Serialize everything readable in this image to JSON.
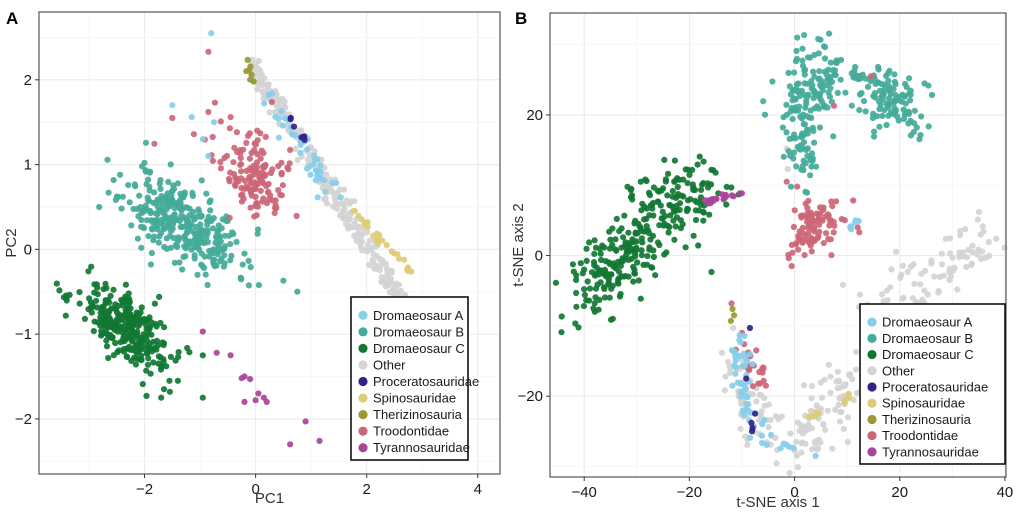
{
  "chart_data": [
    {
      "panel": "A",
      "type": "scatter",
      "title": "",
      "xlabel": "PC1",
      "ylabel": "PC2",
      "xlim": [
        -3.9,
        4.4
      ],
      "ylim": [
        -2.65,
        2.8
      ],
      "xticks": [
        -2,
        0,
        2,
        4
      ],
      "xtick_labels": [
        "−2",
        "0",
        "2",
        "4"
      ],
      "yticks": [
        -2,
        -1,
        0,
        1,
        2
      ],
      "ytick_labels": [
        "−2",
        "−1",
        "0",
        "1",
        "2"
      ],
      "grid": true,
      "legend_position": "bottom-right",
      "clusters": [
        {
          "group": "Dromaeosaur B",
          "n": 330,
          "cx": -1.3,
          "cy": 0.3,
          "sx": 0.55,
          "sy": 0.22,
          "rot": -0.38,
          "seed": 11
        },
        {
          "group": "Dromaeosaur C",
          "n": 300,
          "cx": -2.3,
          "cy": -0.95,
          "sx": 0.45,
          "sy": 0.18,
          "rot": -0.45,
          "seed": 21
        },
        {
          "group": "Troodontidae",
          "n": 110,
          "cx": 0.0,
          "cy": 0.8,
          "sx": 0.3,
          "sy": 0.22,
          "rot": -0.3,
          "seed": 31
        },
        {
          "group": "Troodontidae",
          "n": 30,
          "cx": -0.3,
          "cy": 1.25,
          "sx": 0.55,
          "sy": 0.25,
          "rot": 0.0,
          "seed": 32
        }
      ],
      "bands": [
        {
          "group": "Other",
          "n": 330,
          "x0": -0.1,
          "y0": 2.2,
          "x1": 3.0,
          "y1": -1.0,
          "jitter": 0.07,
          "seed": 41
        },
        {
          "group": "Dromaeosaur A",
          "n": 45,
          "x0": 0.0,
          "y0": 1.95,
          "x1": 1.4,
          "y1": 0.65,
          "jitter": 0.07,
          "seed": 51
        },
        {
          "group": "Spinosauridae",
          "n": 28,
          "x0": 1.75,
          "y0": 0.45,
          "x1": 2.85,
          "y1": -0.3,
          "jitter": 0.03,
          "seed": 61
        },
        {
          "group": "Proceratosauridae",
          "n": 7,
          "x0": 0.6,
          "y0": 1.55,
          "x1": 1.0,
          "y1": 1.2,
          "jitter": 0.02,
          "seed": 71
        },
        {
          "group": "Therizinosauria",
          "n": 7,
          "x0": -0.15,
          "y0": 2.2,
          "x1": 0.0,
          "y1": 1.95,
          "jitter": 0.03,
          "seed": 81
        }
      ],
      "points": [
        {
          "group": "Dromaeosaur A",
          "x": -0.8,
          "y": 2.55
        },
        {
          "group": "Dromaeosaur A",
          "x": -1.5,
          "y": 1.7
        },
        {
          "group": "Dromaeosaur A",
          "x": -1.15,
          "y": 1.56
        },
        {
          "group": "Dromaeosaur A",
          "x": -0.75,
          "y": 1.5
        },
        {
          "group": "Dromaeosaur A",
          "x": -0.95,
          "y": 1.3
        },
        {
          "group": "Dromaeosaur A",
          "x": -0.85,
          "y": 1.1
        },
        {
          "group": "Troodontidae",
          "x": -0.85,
          "y": 2.33
        },
        {
          "group": "Troodontidae",
          "x": -1.5,
          "y": 1.55
        },
        {
          "group": "Troodontidae",
          "x": -0.85,
          "y": 1.62
        },
        {
          "group": "Troodontidae",
          "x": -0.45,
          "y": 1.56
        },
        {
          "group": "Dromaeosaur B",
          "x": -2.0,
          "y": 1.02
        },
        {
          "group": "Dromaeosaur B",
          "x": 0.5,
          "y": -0.37
        },
        {
          "group": "Dromaeosaur B",
          "x": 0.75,
          "y": -0.5
        },
        {
          "group": "Dromaeosaur C",
          "x": -0.95,
          "y": -1.25
        },
        {
          "group": "Dromaeosaur C",
          "x": -1.4,
          "y": -1.55
        },
        {
          "group": "Dromaeosaur C",
          "x": -1.65,
          "y": -1.65
        },
        {
          "group": "Dromaeosaur C",
          "x": -1.7,
          "y": -1.75
        },
        {
          "group": "Dromaeosaur C",
          "x": -0.95,
          "y": -1.75
        },
        {
          "group": "Dromaeosaur C",
          "x": -1.55,
          "y": -1.55
        },
        {
          "group": "Tyrannosauridae",
          "x": -0.95,
          "y": -0.97
        },
        {
          "group": "Tyrannosauridae",
          "x": -0.7,
          "y": -1.22
        },
        {
          "group": "Tyrannosauridae",
          "x": -0.45,
          "y": -1.25
        },
        {
          "group": "Tyrannosauridae",
          "x": -0.2,
          "y": -1.5
        },
        {
          "group": "Tyrannosauridae",
          "x": -0.25,
          "y": -1.52
        },
        {
          "group": "Tyrannosauridae",
          "x": -0.1,
          "y": -1.53
        },
        {
          "group": "Tyrannosauridae",
          "x": 0.05,
          "y": -1.7
        },
        {
          "group": "Tyrannosauridae",
          "x": -0.2,
          "y": -1.8
        },
        {
          "group": "Tyrannosauridae",
          "x": 0.0,
          "y": -1.78
        },
        {
          "group": "Tyrannosauridae",
          "x": 0.15,
          "y": -1.75
        },
        {
          "group": "Tyrannosauridae",
          "x": 0.2,
          "y": -1.8
        },
        {
          "group": "Tyrannosauridae",
          "x": 0.9,
          "y": -2.03
        },
        {
          "group": "Tyrannosauridae",
          "x": 0.62,
          "y": -2.3
        },
        {
          "group": "Tyrannosauridae",
          "x": 1.15,
          "y": -2.26
        },
        {
          "group": "Tyrannosauridae",
          "x": 1.8,
          "y": -2.4
        },
        {
          "group": "Other",
          "x": 1.95,
          "y": -0.97
        }
      ]
    },
    {
      "panel": "B",
      "type": "scatter",
      "title": "",
      "xlabel": "t-SNE axis 1",
      "ylabel": "t-SNE axis 2",
      "xlim": [
        -46.5,
        40.2
      ],
      "ylim": [
        -31.5,
        34.5
      ],
      "xticks": [
        -40,
        -20,
        0,
        20,
        40
      ],
      "xtick_labels": [
        "−40",
        "−20",
        "0",
        "20",
        "40"
      ],
      "yticks": [
        -20,
        0,
        20
      ],
      "ytick_labels": [
        "−20",
        "0",
        "20"
      ],
      "grid": true,
      "legend_position": "bottom-right",
      "clusters": [
        {
          "group": "Dromaeosaur C",
          "n": 170,
          "cx": -34,
          "cy": -1,
          "sx": 5.2,
          "sy": 2.6,
          "rot": 0.7,
          "seed": 101
        },
        {
          "group": "Dromaeosaur C",
          "n": 130,
          "cx": -23,
          "cy": 7,
          "sx": 4.5,
          "sy": 3.0,
          "rot": 0.3,
          "seed": 102
        },
        {
          "group": "Dromaeosaur B",
          "n": 110,
          "cx": 4,
          "cy": 24,
          "sx": 4.2,
          "sy": 2.8,
          "rot": 0.2,
          "seed": 111
        },
        {
          "group": "Dromaeosaur B",
          "n": 110,
          "cx": 18,
          "cy": 22.5,
          "sx": 4.0,
          "sy": 2.2,
          "rot": -0.4,
          "seed": 112
        },
        {
          "group": "Dromaeosaur B",
          "n": 70,
          "cx": 1.5,
          "cy": 16,
          "sx": 1.6,
          "sy": 4.0,
          "rot": 0.1,
          "seed": 113
        },
        {
          "group": "Troodontidae",
          "n": 90,
          "cx": 3.5,
          "cy": 4,
          "sx": 2.6,
          "sy": 1.7,
          "rot": 0.5,
          "seed": 121
        }
      ],
      "bands": [
        {
          "group": "Tyrannosauridae",
          "n": 22,
          "x0": -17,
          "y0": 7.5,
          "x1": -10,
          "y1": 8.8,
          "jitter": 0.25,
          "seed": 131
        },
        {
          "group": "Dromaeosaur A",
          "n": 6,
          "x0": 10.5,
          "y0": 3.8,
          "x1": 12.2,
          "y1": 5.2,
          "jitter": 0.2,
          "seed": 141
        },
        {
          "group": "Other",
          "n": 90,
          "x0": 14,
          "y0": -8,
          "x1": 36,
          "y1": 2,
          "jitter": 2.2,
          "seed": 151
        },
        {
          "group": "Other",
          "n": 120,
          "x0": 0,
          "y0": -27,
          "x1": 16,
          "y1": -14,
          "jitter": 2.5,
          "seed": 152
        },
        {
          "group": "Other",
          "n": 60,
          "x0": -12,
          "y0": -14,
          "x1": -6,
          "y1": -26,
          "jitter": 1.8,
          "seed": 153
        },
        {
          "group": "Dromaeosaur A",
          "n": 45,
          "x0": -11,
          "y0": -12,
          "x1": -9,
          "y1": -23,
          "jitter": 1.1,
          "seed": 161
        },
        {
          "group": "Dromaeosaur A",
          "n": 15,
          "x0": -8,
          "y0": -24,
          "x1": -2,
          "y1": -28,
          "jitter": 0.8,
          "seed": 162
        },
        {
          "group": "Troodontidae",
          "n": 22,
          "x0": -10,
          "y0": -12,
          "x1": -6,
          "y1": -19.5,
          "jitter": 0.7,
          "seed": 171
        },
        {
          "group": "Spinosauridae",
          "n": 6,
          "x0": 2.5,
          "y0": -23.5,
          "x1": 4.5,
          "y1": -22.5,
          "jitter": 0.2,
          "seed": 181
        },
        {
          "group": "Spinosauridae",
          "n": 6,
          "x0": 9,
          "y0": -21,
          "x1": 11,
          "y1": -19.7,
          "jitter": 0.2,
          "seed": 182
        }
      ],
      "points": [
        {
          "group": "Troodontidae",
          "x": 14.5,
          "y": 25.5
        },
        {
          "group": "Troodontidae",
          "x": 7.5,
          "y": 21.3
        },
        {
          "group": "Troodontidae",
          "x": 0.5,
          "y": 9.8
        },
        {
          "group": "Troodontidae",
          "x": -1.5,
          "y": 10.5
        },
        {
          "group": "Other",
          "x": -1.5,
          "y": 15.2
        },
        {
          "group": "Other",
          "x": -1.3,
          "y": 12.3
        },
        {
          "group": "Troodontidae",
          "x": 12,
          "y": 4
        },
        {
          "group": "Troodontidae",
          "x": 12.3,
          "y": 3.3
        },
        {
          "group": "Troodontidae",
          "x": -12,
          "y": -6.8
        },
        {
          "group": "Therizinosauria",
          "x": -11.8,
          "y": -7.6
        },
        {
          "group": "Therizinosauria",
          "x": -11.5,
          "y": -8.5
        },
        {
          "group": "Therizinosauria",
          "x": -12.1,
          "y": -9.3
        },
        {
          "group": "Proceratosauridae",
          "x": -8.5,
          "y": -10.3
        },
        {
          "group": "Proceratosauridae",
          "x": -9.2,
          "y": -17.5
        },
        {
          "group": "Proceratosauridae",
          "x": -7.5,
          "y": -22.5
        },
        {
          "group": "Proceratosauridae",
          "x": -8.2,
          "y": -23.8
        },
        {
          "group": "Proceratosauridae",
          "x": -8.0,
          "y": -24.5
        },
        {
          "group": "Proceratosauridae",
          "x": -8.1,
          "y": -25.0
        },
        {
          "group": "Dromaeosaur A",
          "x": 4,
          "y": -28.5
        },
        {
          "group": "Dromaeosaur B",
          "x": 0.5,
          "y": 31
        }
      ]
    }
  ],
  "legend": {
    "items": [
      {
        "label": "Dromaeosaur A",
        "color": "#87ceeb"
      },
      {
        "label": "Dromaeosaur B",
        "color": "#44aa99"
      },
      {
        "label": "Dromaeosaur C",
        "color": "#117733"
      },
      {
        "label": "Other",
        "color": "#d4d4d4"
      },
      {
        "label": "Proceratosauridae",
        "color": "#332288"
      },
      {
        "label": "Spinosauridae",
        "color": "#ddcc77"
      },
      {
        "label": "Therizinosauria",
        "color": "#999933"
      },
      {
        "label": "Troodontidae",
        "color": "#cc6677"
      },
      {
        "label": "Tyrannosauridae",
        "color": "#aa4499"
      }
    ]
  },
  "panels": {
    "a_label": "A",
    "b_label": "B"
  }
}
